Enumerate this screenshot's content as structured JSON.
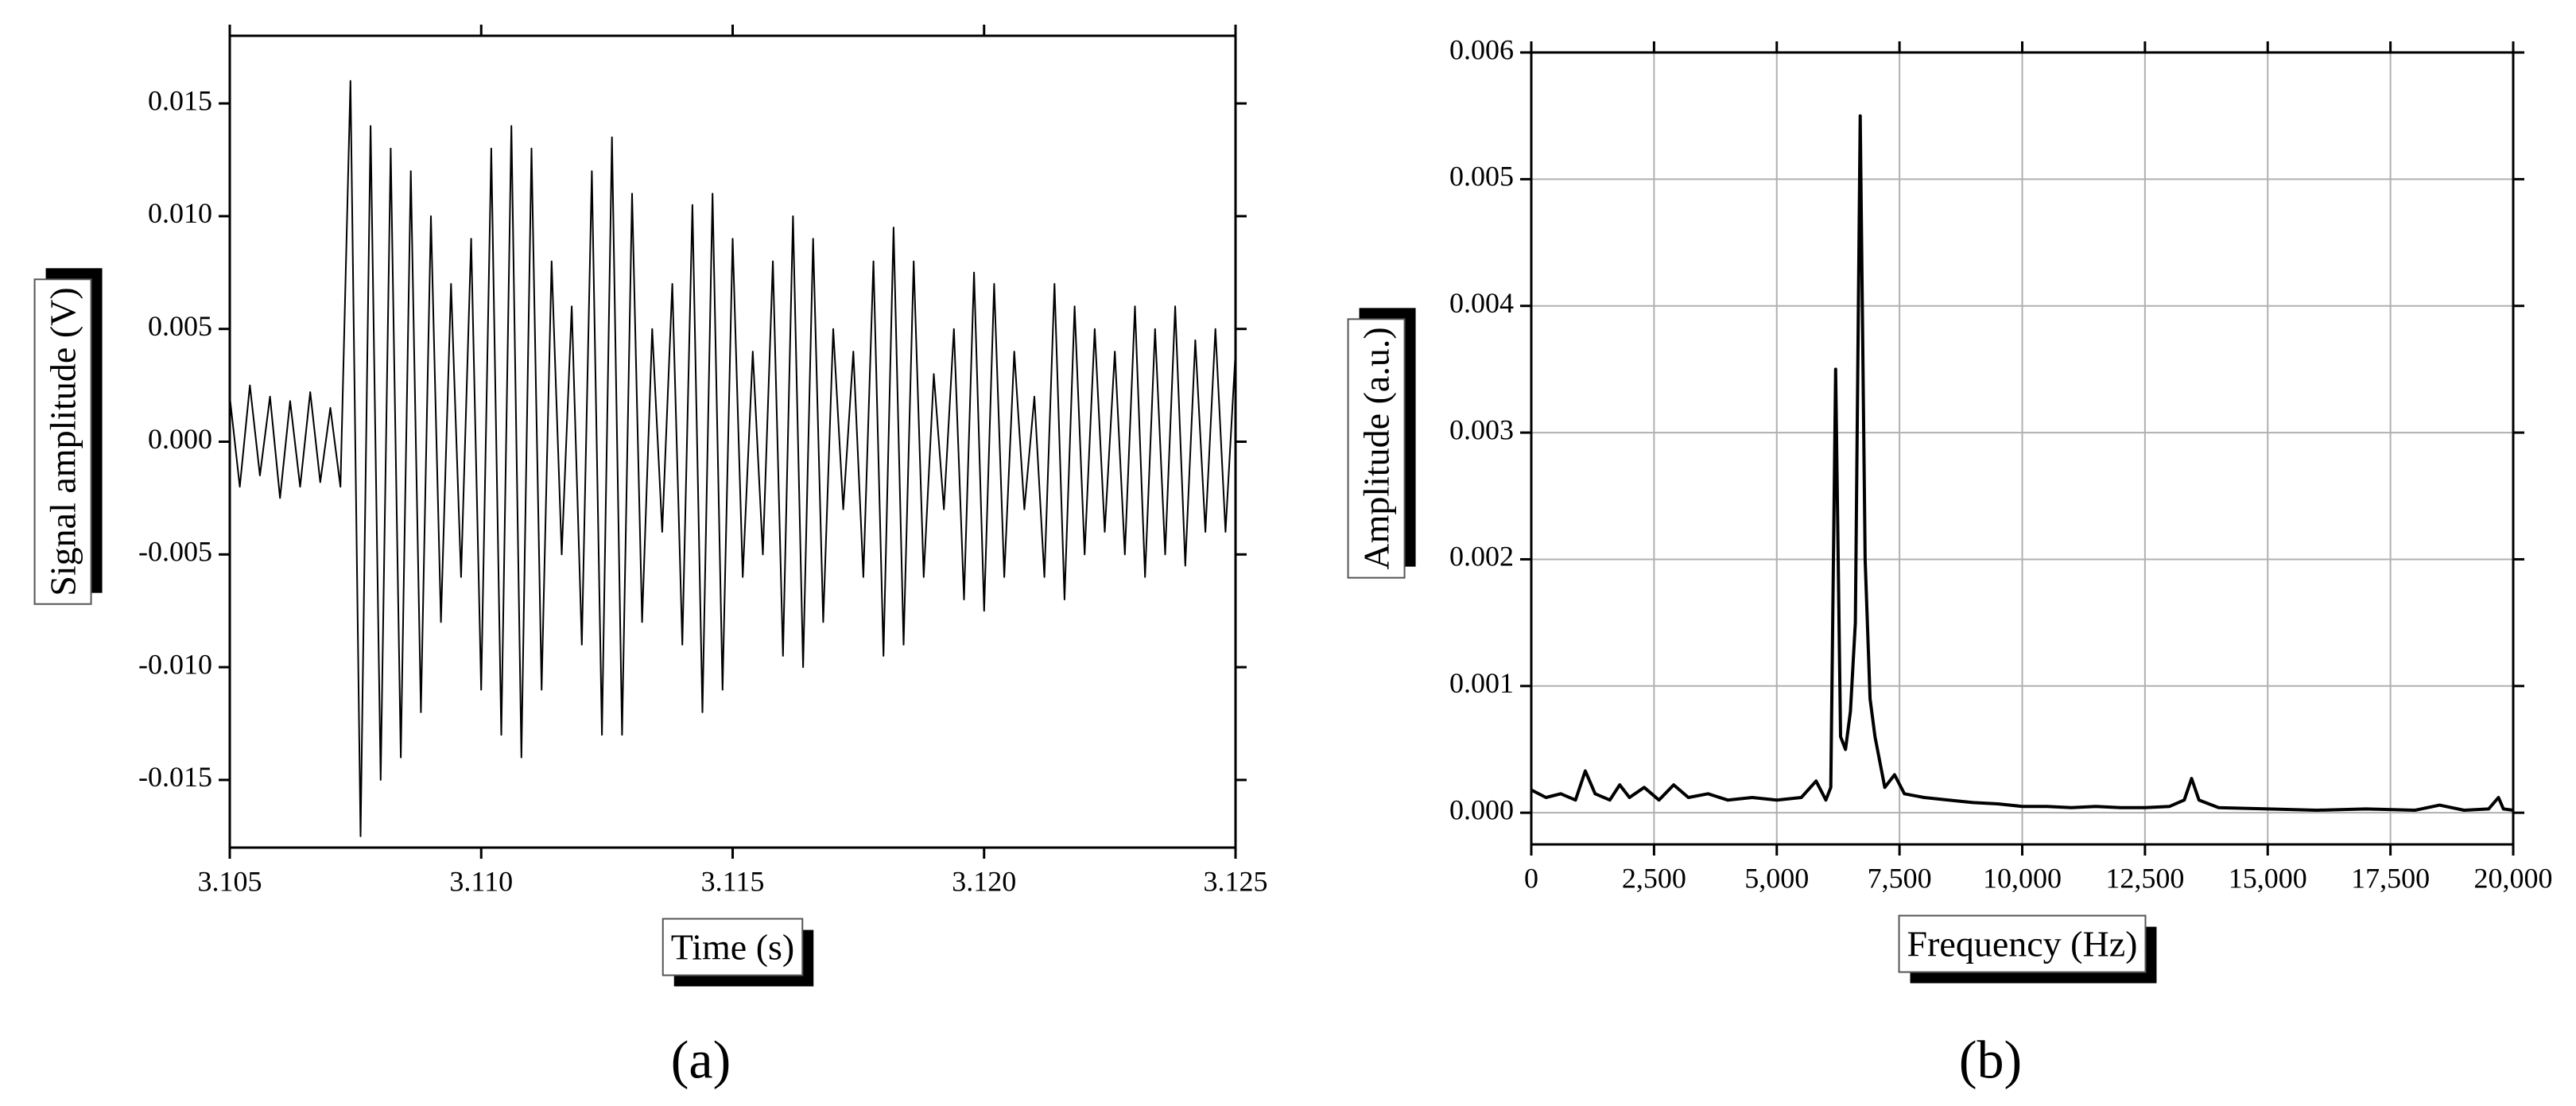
{
  "chart_data": [
    {
      "type": "line",
      "label": "(a)",
      "xlabel": "Time (s)",
      "ylabel": "Signal amplitude (V)",
      "grid": false,
      "xlim": [
        3.105,
        3.125
      ],
      "xticks": [
        3.105,
        {
          "value": 3.11,
          "label": "3.110"
        },
        3.115,
        {
          "value": 3.12,
          "label": "3.120"
        },
        3.125
      ],
      "ylim": [
        -0.018,
        0.018
      ],
      "yticks": [
        -0.015,
        {
          "value": -0.01,
          "label": "-0.010"
        },
        -0.005,
        {
          "value": 0,
          "label": "0.000"
        },
        0.005,
        {
          "value": 0.01,
          "label": "0.010"
        },
        0.015
      ],
      "series": [
        {
          "color": "#000000",
          "x": [
            3.105,
            3.1052,
            3.1054,
            3.1056,
            3.1058,
            3.106,
            3.1062,
            3.1064,
            3.1066,
            3.1068,
            3.107,
            3.1072,
            3.1074,
            3.1076,
            3.1078,
            3.108,
            3.1082,
            3.1084,
            3.1086,
            3.1088,
            3.109,
            3.1092,
            3.1094,
            3.1096,
            3.1098,
            3.11,
            3.1102,
            3.1104,
            3.1106,
            3.1108,
            3.111,
            3.1112,
            3.1114,
            3.1116,
            3.1118,
            3.112,
            3.1122,
            3.1124,
            3.1126,
            3.1128,
            3.113,
            3.1132,
            3.1134,
            3.1136,
            3.1138,
            3.114,
            3.1142,
            3.1144,
            3.1146,
            3.1148,
            3.115,
            3.1152,
            3.1154,
            3.1156,
            3.1158,
            3.116,
            3.1162,
            3.1164,
            3.1166,
            3.1168,
            3.117,
            3.1172,
            3.1174,
            3.1176,
            3.1178,
            3.118,
            3.1182,
            3.1184,
            3.1186,
            3.1188,
            3.119,
            3.1192,
            3.1194,
            3.1196,
            3.1198,
            3.12,
            3.1202,
            3.1204,
            3.1206,
            3.1208,
            3.121,
            3.1212,
            3.1214,
            3.1216,
            3.1218,
            3.122,
            3.1222,
            3.1224,
            3.1226,
            3.1228,
            3.123,
            3.1232,
            3.1234,
            3.1236,
            3.1238,
            3.124,
            3.1242,
            3.1244,
            3.1246,
            3.1248,
            3.125
          ],
          "values": [
            0.002,
            -0.002,
            0.0025,
            -0.0015,
            0.002,
            -0.0025,
            0.0018,
            -0.002,
            0.0022,
            -0.0018,
            0.0015,
            -0.002,
            0.016,
            -0.0175,
            0.014,
            -0.015,
            0.013,
            -0.014,
            0.012,
            -0.012,
            0.01,
            -0.008,
            0.007,
            -0.006,
            0.009,
            -0.011,
            0.013,
            -0.013,
            0.014,
            -0.014,
            0.013,
            -0.011,
            0.008,
            -0.005,
            0.006,
            -0.009,
            0.012,
            -0.013,
            0.0135,
            -0.013,
            0.011,
            -0.008,
            0.005,
            -0.004,
            0.007,
            -0.009,
            0.0105,
            -0.012,
            0.011,
            -0.011,
            0.009,
            -0.006,
            0.004,
            -0.005,
            0.008,
            -0.0095,
            0.01,
            -0.01,
            0.009,
            -0.008,
            0.005,
            -0.003,
            0.004,
            -0.006,
            0.008,
            -0.0095,
            0.0095,
            -0.009,
            0.008,
            -0.006,
            0.003,
            -0.003,
            0.005,
            -0.007,
            0.0075,
            -0.0075,
            0.007,
            -0.006,
            0.004,
            -0.003,
            0.002,
            -0.006,
            0.007,
            -0.007,
            0.006,
            -0.005,
            0.005,
            -0.004,
            0.004,
            -0.005,
            0.006,
            -0.006,
            0.005,
            -0.005,
            0.006,
            -0.0055,
            0.0045,
            -0.004,
            0.005,
            -0.004,
            0.004
          ]
        }
      ]
    },
    {
      "type": "line",
      "label": "(b)",
      "xlabel": "Frequency (Hz)",
      "ylabel": "Amplitude (a.u.)",
      "grid": true,
      "xlim": [
        0,
        20000
      ],
      "xticks": [
        0,
        {
          "value": 2500,
          "label": "2,500"
        },
        {
          "value": 5000,
          "label": "5,000"
        },
        {
          "value": 7500,
          "label": "7,500"
        },
        {
          "value": 10000,
          "label": "10,000"
        },
        {
          "value": 12500,
          "label": "12,500"
        },
        {
          "value": 15000,
          "label": "15,000"
        },
        {
          "value": 17500,
          "label": "17,500"
        },
        {
          "value": 20000,
          "label": "20,000"
        }
      ],
      "ylim": [
        -0.00025,
        0.006
      ],
      "yticks": [
        {
          "value": 0,
          "label": "0.000"
        },
        0.001,
        0.002,
        0.003,
        0.004,
        0.005,
        0.006
      ],
      "series": [
        {
          "color": "#000000",
          "x": [
            0,
            300,
            600,
            900,
            1100,
            1300,
            1600,
            1800,
            2000,
            2300,
            2600,
            2900,
            3200,
            3600,
            4000,
            4500,
            5000,
            5500,
            5800,
            6000,
            6100,
            6200,
            6300,
            6400,
            6500,
            6600,
            6700,
            6800,
            6900,
            7000,
            7200,
            7400,
            7600,
            8000,
            8500,
            9000,
            9500,
            10000,
            10500,
            11000,
            11500,
            12000,
            12500,
            13000,
            13300,
            13450,
            13600,
            14000,
            15000,
            16000,
            17000,
            18000,
            18500,
            19000,
            19500,
            19700,
            19800,
            20000
          ],
          "values": [
            0.00018,
            0.00012,
            0.00015,
            0.0001,
            0.00033,
            0.00015,
            0.0001,
            0.00022,
            0.00012,
            0.0002,
            0.0001,
            0.00022,
            0.00012,
            0.00015,
            0.0001,
            0.00012,
            0.0001,
            0.00012,
            0.00025,
            0.0001,
            0.0002,
            0.0035,
            0.0006,
            0.0005,
            0.0008,
            0.0015,
            0.0055,
            0.002,
            0.0009,
            0.0006,
            0.0002,
            0.0003,
            0.00015,
            0.00012,
            0.0001,
            8e-05,
            7e-05,
            5e-05,
            5e-05,
            4e-05,
            5e-05,
            4e-05,
            4e-05,
            5e-05,
            0.0001,
            0.00027,
            0.0001,
            4e-05,
            3e-05,
            2e-05,
            3e-05,
            2e-05,
            6e-05,
            2e-05,
            3e-05,
            0.00012,
            3e-05,
            2e-05
          ]
        }
      ]
    }
  ]
}
